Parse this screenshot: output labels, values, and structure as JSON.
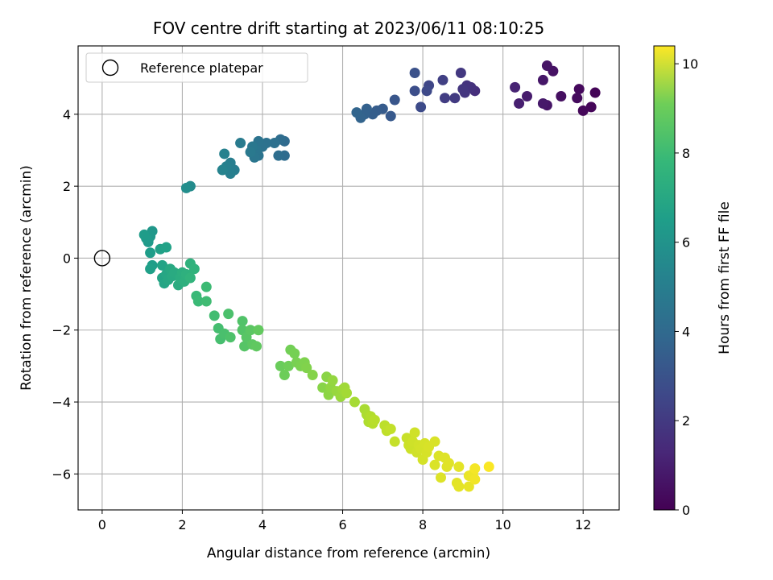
{
  "chart_data": {
    "type": "scatter",
    "title": "FOV centre drift starting at 2023/06/11 08:10:25",
    "xlabel": "Angular distance from reference (arcmin)",
    "ylabel": "Rotation from reference (arcmin)",
    "xlim": [
      -0.6,
      12.9
    ],
    "ylim": [
      -7.0,
      5.9
    ],
    "xticks": [
      0,
      2,
      4,
      6,
      8,
      10,
      12
    ],
    "yticks": [
      -6,
      -4,
      -2,
      0,
      2,
      4
    ],
    "grid": true,
    "legend": {
      "placement": "upper-left",
      "entries": [
        {
          "label": "Reference platepar",
          "marker": "open-circle"
        }
      ]
    },
    "reference_point": {
      "x": 0,
      "y": 0
    },
    "colorbar": {
      "label": "Hours from first FF file",
      "colormap": "viridis",
      "range": [
        0,
        10.4
      ],
      "ticks": [
        0,
        2,
        4,
        6,
        8,
        10
      ]
    },
    "points": [
      {
        "x": 12.3,
        "y": 4.6,
        "c": 0.1
      },
      {
        "x": 12.2,
        "y": 4.2,
        "c": 0.15
      },
      {
        "x": 12.0,
        "y": 4.1,
        "c": 0.2
      },
      {
        "x": 11.9,
        "y": 4.7,
        "c": 0.25
      },
      {
        "x": 11.85,
        "y": 4.45,
        "c": 0.3
      },
      {
        "x": 11.45,
        "y": 4.5,
        "c": 0.4
      },
      {
        "x": 11.25,
        "y": 5.2,
        "c": 0.5
      },
      {
        "x": 11.1,
        "y": 5.35,
        "c": 0.55
      },
      {
        "x": 11.1,
        "y": 4.25,
        "c": 0.6
      },
      {
        "x": 11.0,
        "y": 4.95,
        "c": 0.65
      },
      {
        "x": 11.0,
        "y": 4.3,
        "c": 0.7
      },
      {
        "x": 10.6,
        "y": 4.5,
        "c": 0.8
      },
      {
        "x": 10.4,
        "y": 4.3,
        "c": 0.9
      },
      {
        "x": 10.3,
        "y": 4.75,
        "c": 1.0
      },
      {
        "x": 9.3,
        "y": 4.65,
        "c": 1.4
      },
      {
        "x": 9.2,
        "y": 4.75,
        "c": 1.5
      },
      {
        "x": 9.1,
        "y": 4.8,
        "c": 1.55
      },
      {
        "x": 9.05,
        "y": 4.6,
        "c": 1.6
      },
      {
        "x": 9.0,
        "y": 4.7,
        "c": 1.65
      },
      {
        "x": 8.95,
        "y": 5.15,
        "c": 1.7
      },
      {
        "x": 8.8,
        "y": 4.45,
        "c": 1.8
      },
      {
        "x": 8.55,
        "y": 4.45,
        "c": 1.9
      },
      {
        "x": 8.5,
        "y": 4.95,
        "c": 2.0
      },
      {
        "x": 8.15,
        "y": 4.8,
        "c": 2.2
      },
      {
        "x": 8.1,
        "y": 4.65,
        "c": 2.3
      },
      {
        "x": 7.95,
        "y": 4.2,
        "c": 2.4
      },
      {
        "x": 7.8,
        "y": 4.65,
        "c": 2.5
      },
      {
        "x": 7.8,
        "y": 5.15,
        "c": 2.6
      },
      {
        "x": 7.3,
        "y": 4.4,
        "c": 2.8
      },
      {
        "x": 7.2,
        "y": 3.95,
        "c": 2.9
      },
      {
        "x": 7.0,
        "y": 4.15,
        "c": 3.0
      },
      {
        "x": 6.85,
        "y": 4.1,
        "c": 3.05
      },
      {
        "x": 6.75,
        "y": 4.0,
        "c": 3.1
      },
      {
        "x": 6.6,
        "y": 4.15,
        "c": 3.2
      },
      {
        "x": 6.55,
        "y": 4.0,
        "c": 3.25
      },
      {
        "x": 6.45,
        "y": 3.9,
        "c": 3.3
      },
      {
        "x": 6.35,
        "y": 4.05,
        "c": 3.35
      },
      {
        "x": 4.55,
        "y": 3.25,
        "c": 3.6
      },
      {
        "x": 4.55,
        "y": 2.85,
        "c": 3.65
      },
      {
        "x": 4.45,
        "y": 3.3,
        "c": 3.7
      },
      {
        "x": 4.4,
        "y": 2.85,
        "c": 3.75
      },
      {
        "x": 4.3,
        "y": 3.2,
        "c": 3.8
      },
      {
        "x": 4.1,
        "y": 3.2,
        "c": 3.85
      },
      {
        "x": 4.0,
        "y": 3.1,
        "c": 3.9
      },
      {
        "x": 3.9,
        "y": 3.25,
        "c": 3.95
      },
      {
        "x": 3.9,
        "y": 2.85,
        "c": 4.0
      },
      {
        "x": 3.85,
        "y": 3.0,
        "c": 4.05
      },
      {
        "x": 3.8,
        "y": 2.8,
        "c": 4.1
      },
      {
        "x": 3.75,
        "y": 3.1,
        "c": 4.15
      },
      {
        "x": 3.7,
        "y": 2.95,
        "c": 4.2
      },
      {
        "x": 3.45,
        "y": 3.2,
        "c": 4.3
      },
      {
        "x": 3.3,
        "y": 2.45,
        "c": 4.4
      },
      {
        "x": 3.2,
        "y": 2.65,
        "c": 4.45
      },
      {
        "x": 3.2,
        "y": 2.35,
        "c": 4.5
      },
      {
        "x": 3.1,
        "y": 2.55,
        "c": 4.55
      },
      {
        "x": 3.05,
        "y": 2.9,
        "c": 4.6
      },
      {
        "x": 3.0,
        "y": 2.45,
        "c": 4.65
      },
      {
        "x": 2.2,
        "y": 2.0,
        "c": 5.0
      },
      {
        "x": 2.1,
        "y": 1.95,
        "c": 5.1
      },
      {
        "x": 1.25,
        "y": 0.75,
        "c": 5.5
      },
      {
        "x": 1.2,
        "y": 0.6,
        "c": 5.55
      },
      {
        "x": 1.15,
        "y": 0.45,
        "c": 5.6
      },
      {
        "x": 1.1,
        "y": 0.55,
        "c": 5.65
      },
      {
        "x": 1.05,
        "y": 0.65,
        "c": 5.7
      },
      {
        "x": 1.2,
        "y": 0.15,
        "c": 5.75
      },
      {
        "x": 1.25,
        "y": -0.2,
        "c": 5.8
      },
      {
        "x": 1.2,
        "y": -0.3,
        "c": 5.85
      },
      {
        "x": 1.45,
        "y": 0.25,
        "c": 5.9
      },
      {
        "x": 1.6,
        "y": 0.3,
        "c": 5.95
      },
      {
        "x": 1.5,
        "y": -0.2,
        "c": 6.0
      },
      {
        "x": 1.5,
        "y": -0.55,
        "c": 6.05
      },
      {
        "x": 1.55,
        "y": -0.7,
        "c": 6.1
      },
      {
        "x": 1.6,
        "y": -0.45,
        "c": 6.15
      },
      {
        "x": 1.65,
        "y": -0.6,
        "c": 6.2
      },
      {
        "x": 1.7,
        "y": -0.3,
        "c": 6.25
      },
      {
        "x": 1.75,
        "y": -0.5,
        "c": 6.3
      },
      {
        "x": 1.8,
        "y": -0.4,
        "c": 6.35
      },
      {
        "x": 1.9,
        "y": -0.75,
        "c": 6.4
      },
      {
        "x": 1.95,
        "y": -0.55,
        "c": 6.45
      },
      {
        "x": 2.0,
        "y": -0.4,
        "c": 6.5
      },
      {
        "x": 2.05,
        "y": -0.65,
        "c": 6.55
      },
      {
        "x": 2.1,
        "y": -0.45,
        "c": 6.6
      },
      {
        "x": 2.2,
        "y": -0.15,
        "c": 6.65
      },
      {
        "x": 2.3,
        "y": -0.3,
        "c": 6.7
      },
      {
        "x": 2.2,
        "y": -0.55,
        "c": 6.75
      },
      {
        "x": 2.35,
        "y": -1.05,
        "c": 7.0
      },
      {
        "x": 2.4,
        "y": -1.2,
        "c": 7.05
      },
      {
        "x": 2.6,
        "y": -0.8,
        "c": 7.1
      },
      {
        "x": 2.6,
        "y": -1.2,
        "c": 7.15
      },
      {
        "x": 2.8,
        "y": -1.6,
        "c": 7.2
      },
      {
        "x": 2.9,
        "y": -1.95,
        "c": 7.25
      },
      {
        "x": 2.95,
        "y": -2.25,
        "c": 7.3
      },
      {
        "x": 3.05,
        "y": -2.1,
        "c": 7.35
      },
      {
        "x": 3.15,
        "y": -1.55,
        "c": 7.4
      },
      {
        "x": 3.2,
        "y": -2.2,
        "c": 7.45
      },
      {
        "x": 3.5,
        "y": -1.75,
        "c": 7.5
      },
      {
        "x": 3.5,
        "y": -2.0,
        "c": 7.55
      },
      {
        "x": 3.55,
        "y": -2.45,
        "c": 7.6
      },
      {
        "x": 3.6,
        "y": -2.2,
        "c": 7.65
      },
      {
        "x": 3.7,
        "y": -2.0,
        "c": 7.7
      },
      {
        "x": 3.75,
        "y": -2.4,
        "c": 7.75
      },
      {
        "x": 3.85,
        "y": -2.45,
        "c": 7.8
      },
      {
        "x": 3.9,
        "y": -2.0,
        "c": 7.85
      },
      {
        "x": 4.45,
        "y": -3.0,
        "c": 8.0
      },
      {
        "x": 4.55,
        "y": -3.25,
        "c": 8.05
      },
      {
        "x": 4.65,
        "y": -3.0,
        "c": 8.1
      },
      {
        "x": 4.7,
        "y": -2.55,
        "c": 8.15
      },
      {
        "x": 4.8,
        "y": -2.65,
        "c": 8.2
      },
      {
        "x": 4.85,
        "y": -2.9,
        "c": 8.25
      },
      {
        "x": 4.95,
        "y": -3.0,
        "c": 8.3
      },
      {
        "x": 5.05,
        "y": -2.9,
        "c": 8.35
      },
      {
        "x": 5.1,
        "y": -3.05,
        "c": 8.4
      },
      {
        "x": 5.25,
        "y": -3.25,
        "c": 8.45
      },
      {
        "x": 5.5,
        "y": -3.6,
        "c": 8.5
      },
      {
        "x": 5.6,
        "y": -3.3,
        "c": 8.55
      },
      {
        "x": 5.65,
        "y": -3.8,
        "c": 8.6
      },
      {
        "x": 5.7,
        "y": -3.6,
        "c": 8.65
      },
      {
        "x": 5.75,
        "y": -3.4,
        "c": 8.7
      },
      {
        "x": 5.85,
        "y": -3.7,
        "c": 8.75
      },
      {
        "x": 5.95,
        "y": -3.85,
        "c": 8.8
      },
      {
        "x": 6.0,
        "y": -3.65,
        "c": 8.85
      },
      {
        "x": 6.05,
        "y": -3.6,
        "c": 8.9
      },
      {
        "x": 6.1,
        "y": -3.75,
        "c": 8.95
      },
      {
        "x": 6.3,
        "y": -4.0,
        "c": 9.0
      },
      {
        "x": 6.55,
        "y": -4.2,
        "c": 9.05
      },
      {
        "x": 6.6,
        "y": -4.35,
        "c": 9.1
      },
      {
        "x": 6.65,
        "y": -4.55,
        "c": 9.15
      },
      {
        "x": 6.7,
        "y": -4.4,
        "c": 9.2
      },
      {
        "x": 6.75,
        "y": -4.6,
        "c": 9.25
      },
      {
        "x": 6.8,
        "y": -4.5,
        "c": 9.3
      },
      {
        "x": 7.05,
        "y": -4.65,
        "c": 9.35
      },
      {
        "x": 7.1,
        "y": -4.8,
        "c": 9.4
      },
      {
        "x": 7.2,
        "y": -4.75,
        "c": 9.45
      },
      {
        "x": 7.3,
        "y": -5.1,
        "c": 9.5
      },
      {
        "x": 7.6,
        "y": -5.0,
        "c": 9.55
      },
      {
        "x": 7.65,
        "y": -5.2,
        "c": 9.6
      },
      {
        "x": 7.7,
        "y": -5.3,
        "c": 9.62
      },
      {
        "x": 7.75,
        "y": -5.1,
        "c": 9.64
      },
      {
        "x": 7.8,
        "y": -4.85,
        "c": 9.66
      },
      {
        "x": 7.85,
        "y": -5.4,
        "c": 9.68
      },
      {
        "x": 7.9,
        "y": -5.2,
        "c": 9.7
      },
      {
        "x": 7.95,
        "y": -5.3,
        "c": 9.72
      },
      {
        "x": 8.0,
        "y": -5.6,
        "c": 9.74
      },
      {
        "x": 8.05,
        "y": -5.15,
        "c": 9.76
      },
      {
        "x": 8.1,
        "y": -5.4,
        "c": 9.78
      },
      {
        "x": 8.15,
        "y": -5.25,
        "c": 9.8
      },
      {
        "x": 8.3,
        "y": -5.1,
        "c": 9.82
      },
      {
        "x": 8.3,
        "y": -5.75,
        "c": 9.84
      },
      {
        "x": 8.4,
        "y": -5.5,
        "c": 9.86
      },
      {
        "x": 8.45,
        "y": -6.1,
        "c": 9.88
      },
      {
        "x": 8.55,
        "y": -5.55,
        "c": 9.9
      },
      {
        "x": 8.6,
        "y": -5.8,
        "c": 9.92
      },
      {
        "x": 8.65,
        "y": -5.7,
        "c": 9.94
      },
      {
        "x": 8.85,
        "y": -6.25,
        "c": 9.96
      },
      {
        "x": 8.9,
        "y": -5.8,
        "c": 9.98
      },
      {
        "x": 8.9,
        "y": -6.35,
        "c": 10.0
      },
      {
        "x": 9.15,
        "y": -6.35,
        "c": 10.05
      },
      {
        "x": 9.15,
        "y": -6.05,
        "c": 10.1
      },
      {
        "x": 9.25,
        "y": -6.0,
        "c": 10.15
      },
      {
        "x": 9.3,
        "y": -6.15,
        "c": 10.2
      },
      {
        "x": 9.3,
        "y": -5.85,
        "c": 10.25
      },
      {
        "x": 9.65,
        "y": -5.8,
        "c": 10.35
      }
    ]
  }
}
